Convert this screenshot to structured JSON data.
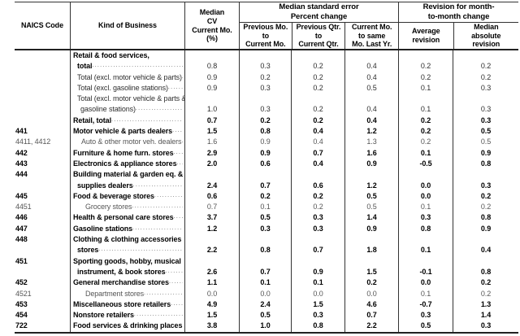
{
  "header": {
    "naics": "NAICS Code",
    "kind_of_business": "Kind of Business",
    "median_cv": "Median\nCV\nCurrent Mo.\n(%)",
    "mse_group": "Median standard error\nPercent change",
    "mse_cols": [
      "Previous Mo.\nto\nCurrent Mo.",
      "Previous Qtr.\nto\nCurrent Qtr.",
      "Current Mo.\nto same\nMo. Last Yr."
    ],
    "rev_group": "Revision for month-\nto-month change",
    "rev_cols": [
      "Average\nrevision",
      "Median\nabsolute\nrevision"
    ]
  },
  "table": {
    "rows": [
      {
        "code": "",
        "label": "Retail & food services,",
        "indent": 0,
        "labelStyle": "bold",
        "valueStyle": "normal",
        "leader": false,
        "values": null
      },
      {
        "code": "",
        "label": "total",
        "indent": 5,
        "labelStyle": "bold",
        "valueStyle": "normal",
        "leader": true,
        "values": [
          "0.8",
          "0.3",
          "0.2",
          "0.4",
          "0.2",
          "0.2"
        ]
      },
      {
        "code": "",
        "label": "Total (excl. motor vehicle & parts)",
        "indent": 5,
        "labelStyle": "normal",
        "valueStyle": "normal",
        "leader": true,
        "values": [
          "0.9",
          "0.2",
          "0.2",
          "0.4",
          "0.2",
          "0.2"
        ]
      },
      {
        "code": "",
        "label": "Total (excl. gasoline stations)",
        "indent": 5,
        "labelStyle": "normal",
        "valueStyle": "normal",
        "leader": true,
        "values": [
          "0.9",
          "0.3",
          "0.2",
          "0.5",
          "0.1",
          "0.3"
        ]
      },
      {
        "code": "",
        "label": "Total (excl. motor vehicle & parts &",
        "indent": 5,
        "labelStyle": "normal",
        "valueStyle": "normal",
        "leader": false,
        "values": null
      },
      {
        "code": "",
        "label": "gasoline stations)",
        "indent": 9,
        "labelStyle": "normal",
        "valueStyle": "normal",
        "leader": true,
        "values": [
          "1.0",
          "0.3",
          "0.2",
          "0.4",
          "0.1",
          "0.3"
        ]
      },
      {
        "code": "",
        "label": "Retail, total",
        "indent": 0,
        "labelStyle": "bold",
        "valueStyle": "bold",
        "leader": true,
        "values": [
          "0.7",
          "0.2",
          "0.2",
          "0.4",
          "0.2",
          "0.3"
        ]
      },
      {
        "code": "441",
        "label": "Motor vehicle & parts dealers",
        "indent": 0,
        "labelStyle": "bold",
        "valueStyle": "bold",
        "leader": true,
        "values": [
          "1.5",
          "0.8",
          "0.4",
          "1.2",
          "0.2",
          "0.5"
        ]
      },
      {
        "code": "4411, 4412",
        "label": "Auto & other motor veh. dealers",
        "indent": 10,
        "labelStyle": "sub",
        "valueStyle": "sub",
        "leader": true,
        "values": [
          "1.6",
          "0.9",
          "0.4",
          "1.3",
          "0.2",
          "0.5"
        ]
      },
      {
        "code": "442",
        "label": "Furniture & home furn. stores",
        "indent": 0,
        "labelStyle": "bold",
        "valueStyle": "bold",
        "leader": true,
        "values": [
          "2.9",
          "0.9",
          "0.7",
          "1.6",
          "0.1",
          "0.9"
        ]
      },
      {
        "code": "443",
        "label": "Electronics & appliance stores",
        "indent": 0,
        "labelStyle": "bold",
        "valueStyle": "bold",
        "leader": true,
        "values": [
          "2.0",
          "0.6",
          "0.4",
          "0.9",
          "-0.5",
          "0.8"
        ]
      },
      {
        "code": "444",
        "label": "Building material & garden eq. &",
        "indent": 0,
        "labelStyle": "bold",
        "valueStyle": "bold",
        "leader": false,
        "values": null
      },
      {
        "code": "",
        "label": "supplies dealers",
        "indent": 5,
        "labelStyle": "bold",
        "valueStyle": "bold",
        "leader": true,
        "values": [
          "2.4",
          "0.7",
          "0.6",
          "1.2",
          "0.0",
          "0.3"
        ]
      },
      {
        "code": "445",
        "label": "Food & beverage stores",
        "indent": 0,
        "labelStyle": "bold",
        "valueStyle": "bold",
        "leader": true,
        "values": [
          "0.6",
          "0.2",
          "0.2",
          "0.5",
          "0.0",
          "0.2"
        ]
      },
      {
        "code": "4451",
        "label": "Grocery stores",
        "indent": 15,
        "labelStyle": "sub",
        "valueStyle": "sub",
        "leader": true,
        "values": [
          "0.7",
          "0.1",
          "0.2",
          "0.5",
          "0.1",
          "0.2"
        ]
      },
      {
        "code": "446",
        "label": "Health & personal care stores",
        "indent": 0,
        "labelStyle": "bold",
        "valueStyle": "bold",
        "leader": true,
        "values": [
          "3.7",
          "0.5",
          "0.3",
          "1.4",
          "0.3",
          "0.8"
        ]
      },
      {
        "code": "447",
        "label": "Gasoline stations",
        "indent": 0,
        "labelStyle": "bold",
        "valueStyle": "bold",
        "leader": true,
        "values": [
          "1.2",
          "0.3",
          "0.3",
          "0.9",
          "0.8",
          "0.9"
        ]
      },
      {
        "code": "448",
        "label": "Clothing & clothing accessories",
        "indent": 0,
        "labelStyle": "bold",
        "valueStyle": "bold",
        "leader": false,
        "values": null
      },
      {
        "code": "",
        "label": "stores",
        "indent": 5,
        "labelStyle": "bold",
        "valueStyle": "bold",
        "leader": true,
        "values": [
          "2.2",
          "0.8",
          "0.7",
          "1.8",
          "0.1",
          "0.4"
        ]
      },
      {
        "code": "451",
        "label": "Sporting goods, hobby, musical",
        "indent": 0,
        "labelStyle": "bold",
        "valueStyle": "bold",
        "leader": false,
        "values": null
      },
      {
        "code": "",
        "label": "instrument, & book stores",
        "indent": 5,
        "labelStyle": "bold",
        "valueStyle": "bold",
        "leader": true,
        "values": [
          "2.6",
          "0.7",
          "0.9",
          "1.5",
          "-0.1",
          "0.8"
        ]
      },
      {
        "code": "452",
        "label": "General merchandise stores",
        "indent": 0,
        "labelStyle": "bold",
        "valueStyle": "bold",
        "leader": true,
        "values": [
          "1.1",
          "0.1",
          "0.1",
          "0.2",
          "0.0",
          "0.2"
        ]
      },
      {
        "code": "4521",
        "label": "Department stores",
        "indent": 15,
        "labelStyle": "sub",
        "valueStyle": "sub",
        "leader": true,
        "values": [
          "0.0",
          "0.0",
          "0.0",
          "0.0",
          "0.1",
          "0.2"
        ]
      },
      {
        "code": "453",
        "label": "Miscellaneous store retailers",
        "indent": 0,
        "labelStyle": "bold",
        "valueStyle": "bold",
        "leader": true,
        "values": [
          "4.9",
          "2.4",
          "1.5",
          "4.6",
          "-0.7",
          "1.3"
        ]
      },
      {
        "code": "454",
        "label": "Nonstore retailers",
        "indent": 0,
        "labelStyle": "bold",
        "valueStyle": "bold",
        "leader": true,
        "values": [
          "1.5",
          "0.5",
          "0.3",
          "0.7",
          "0.3",
          "1.4"
        ]
      },
      {
        "code": "722",
        "label": "Food services & drinking places",
        "indent": 0,
        "labelStyle": "bold",
        "valueStyle": "bold",
        "leader": true,
        "values": [
          "3.8",
          "1.0",
          "0.8",
          "2.2",
          "0.5",
          "0.3"
        ]
      }
    ]
  }
}
